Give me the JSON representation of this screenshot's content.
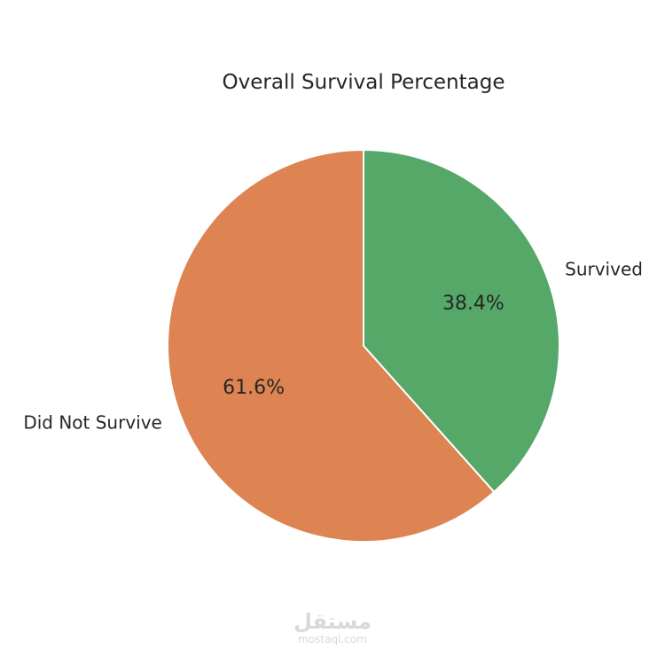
{
  "chart_data": {
    "type": "pie",
    "title": "Overall Survival Percentage",
    "slices": [
      {
        "label": "Survived",
        "value": 38.4,
        "pct_label": "38.4%",
        "color": "#55a868"
      },
      {
        "label": "Did Not Survive",
        "value": 61.6,
        "pct_label": "61.6%",
        "color": "#dd8452"
      }
    ],
    "start_angle_deg": 90,
    "direction": "clockwise",
    "edge_color": "#ffffff"
  },
  "watermark": {
    "logo_text": "مستقل",
    "domain": "mostaql.com"
  }
}
